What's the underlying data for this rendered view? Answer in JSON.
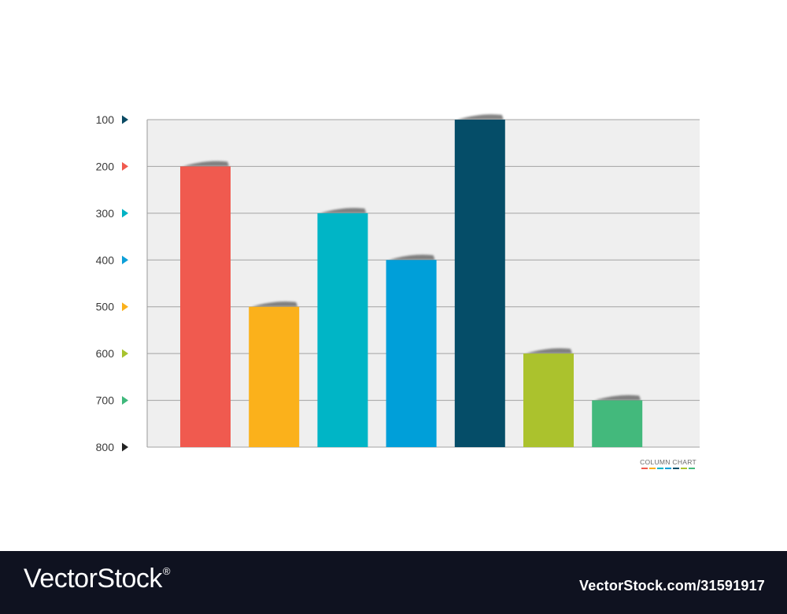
{
  "chart_data": {
    "type": "bar",
    "title": "",
    "xlabel": "",
    "ylabel": "",
    "ylim": [
      800,
      100
    ],
    "y_ticks": [
      100,
      200,
      300,
      400,
      500,
      600,
      700,
      800
    ],
    "y_tick_marker_colors": [
      "#0a4a63",
      "#f05a4f",
      "#00b2c4",
      "#0d9fd8",
      "#fbb11b",
      "#a7c32e",
      "#3fb87b",
      "#222222"
    ],
    "values": [
      200,
      500,
      300,
      400,
      100,
      600,
      700
    ],
    "bar_colors": [
      "#f05a4f",
      "#fbb11b",
      "#00b5c6",
      "#009fd9",
      "#054d68",
      "#abc22d",
      "#43b97c"
    ],
    "grid": true,
    "plot_background": "#efefef",
    "legend": {
      "label": "COLUMN CHART",
      "position": "bottom-right",
      "swatches": [
        "#f05a4f",
        "#fbb11b",
        "#00b5c6",
        "#009fd9",
        "#054d68",
        "#abc22d",
        "#43b97c"
      ]
    }
  },
  "footer": {
    "brand": "VectorStock",
    "brand_mark": "®",
    "image_id": "VectorStock.com/31591917",
    "background": "#0f1220"
  }
}
